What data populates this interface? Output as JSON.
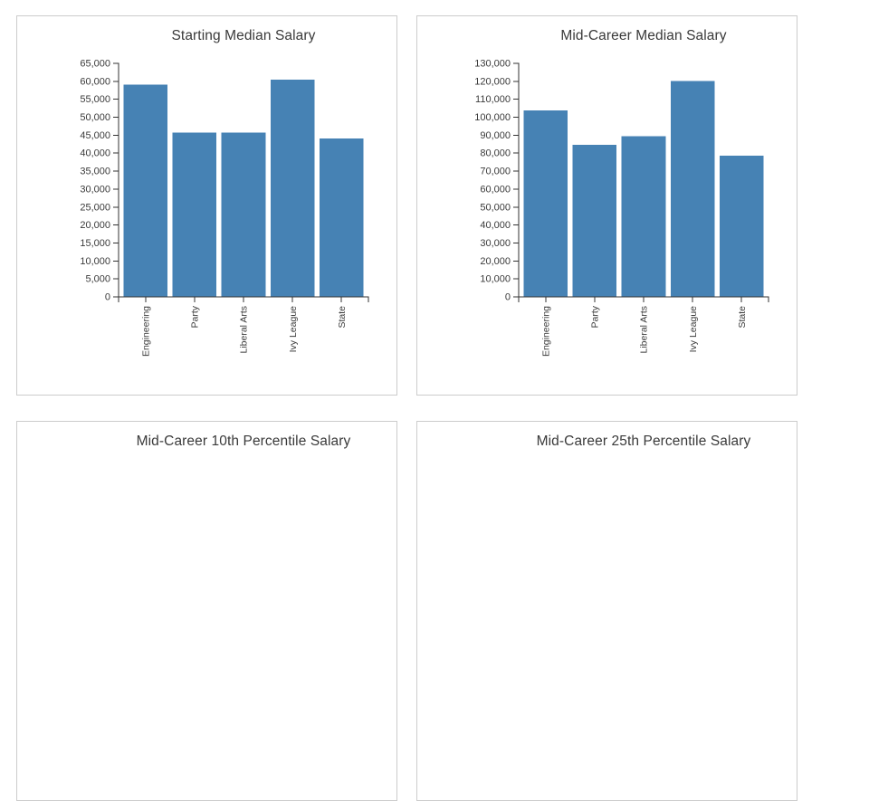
{
  "page": {
    "background": "#ffffff"
  },
  "colors": {
    "bar": "#4682b4",
    "card_border": "#cccccc",
    "axis": "#333333",
    "tick_label": "#3a3a3a",
    "title": "#3a3a3a"
  },
  "chart_data": [
    {
      "type": "bar",
      "title": "Starting Median Salary",
      "categories": [
        "Engineering",
        "Party",
        "Liberal Arts",
        "Ivy League",
        "State"
      ],
      "values": [
        59058,
        45715,
        45747,
        60475,
        44126
      ],
      "xlabel": "",
      "ylabel": "",
      "ylim": [
        0,
        65000
      ],
      "ytick_step": 5000,
      "ytick_labels": [
        "0",
        "5,000",
        "10,000",
        "15,000",
        "20,000",
        "25,000",
        "30,000",
        "35,000",
        "40,000",
        "45,000",
        "50,000",
        "55,000",
        "60,000",
        "65,000"
      ],
      "grid": false,
      "legend": null,
      "bar_color": "#4682b4",
      "x_tick_label_rotation": -90,
      "visibility": "fully visible"
    },
    {
      "type": "bar",
      "title": "Mid-Career Median Salary",
      "categories": [
        "Engineering",
        "Party",
        "Liberal Arts",
        "Ivy League",
        "State"
      ],
      "values": [
        103842,
        84685,
        89379,
        120125,
        78567
      ],
      "xlabel": "",
      "ylabel": "",
      "ylim": [
        0,
        130000
      ],
      "ytick_step": 10000,
      "ytick_labels": [
        "0",
        "10,000",
        "20,000",
        "30,000",
        "40,000",
        "50,000",
        "60,000",
        "70,000",
        "80,000",
        "90,000",
        "100,000",
        "110,000",
        "120,000",
        "130,000"
      ],
      "grid": false,
      "legend": null,
      "bar_color": "#4682b4",
      "x_tick_label_rotation": -90,
      "visibility": "fully visible"
    },
    {
      "type": "bar",
      "title": "Mid-Career 10th Percentile Salary",
      "visibility": "only title visible; rest of chart clipped below viewport"
    },
    {
      "type": "bar",
      "title": "Mid-Career 25th Percentile Salary",
      "visibility": "only title visible; rest of chart clipped below viewport"
    }
  ]
}
